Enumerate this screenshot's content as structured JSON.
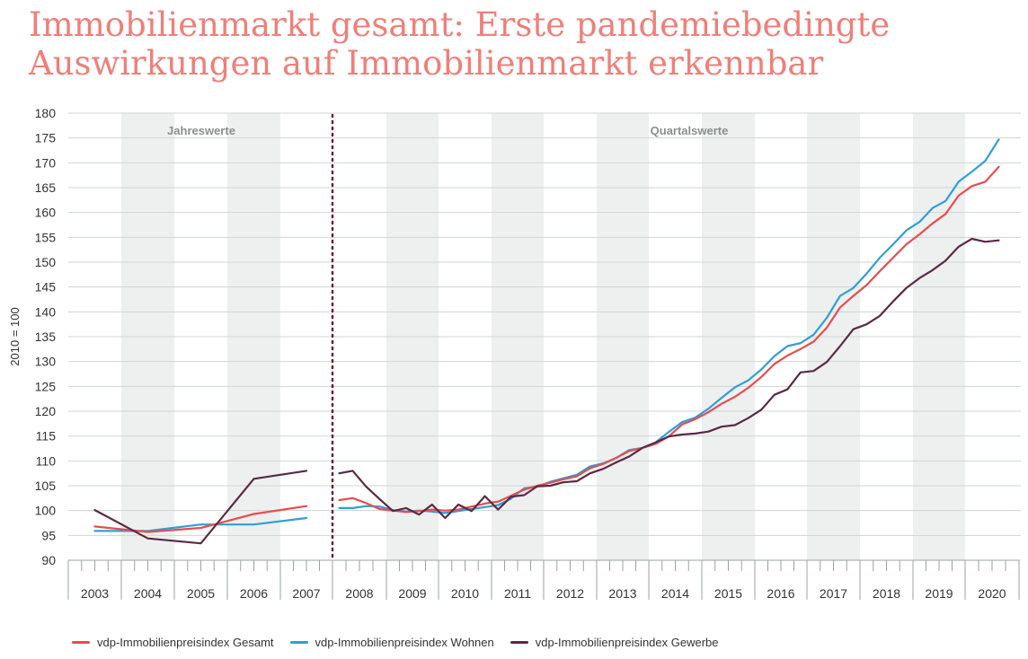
{
  "title_line1": "Immobilienmarkt gesamt: Erste pandemiebedingte",
  "title_line2": "Auswirkungen auf Immobilienmarkt erkennbar",
  "colors": {
    "title": "#ef7f79",
    "gesamt": "#e84c4f",
    "wohnen": "#2f9fd6",
    "gewerbe": "#5a2a45",
    "band": "#edf0ef",
    "grid": "#cfd6d3",
    "divider": "#6b1f33"
  },
  "chart_data": {
    "type": "line",
    "ylabel": "2010 = 100",
    "ylim": [
      90,
      180
    ],
    "yticks": [
      90,
      95,
      100,
      105,
      110,
      115,
      120,
      125,
      130,
      135,
      140,
      145,
      150,
      155,
      160,
      165,
      170,
      175,
      180
    ],
    "years": [
      "2003",
      "2004",
      "2005",
      "2006",
      "2007",
      "2008",
      "2009",
      "2010",
      "2011",
      "2012",
      "2013",
      "2014",
      "2015",
      "2016",
      "2017",
      "2018",
      "2019",
      "2020"
    ],
    "section_labels": {
      "annual": "Jahreswerte",
      "quarterly": "Quartalswerte"
    },
    "annual_x": [
      2003,
      2004,
      2005,
      2006,
      2007
    ],
    "quarterly_x": [
      "2008 Q1",
      "2008 Q2",
      "2008 Q3",
      "2008 Q4",
      "2009 Q1",
      "2009 Q2",
      "2009 Q3",
      "2009 Q4",
      "2010 Q1",
      "2010 Q2",
      "2010 Q3",
      "2010 Q4",
      "2011 Q1",
      "2011 Q2",
      "2011 Q3",
      "2011 Q4",
      "2012 Q1",
      "2012 Q2",
      "2012 Q3",
      "2012 Q4",
      "2013 Q1",
      "2013 Q2",
      "2013 Q3",
      "2013 Q4",
      "2014 Q1",
      "2014 Q2",
      "2014 Q3",
      "2014 Q4",
      "2015 Q1",
      "2015 Q2",
      "2015 Q3",
      "2015 Q4",
      "2016 Q1",
      "2016 Q2",
      "2016 Q3",
      "2016 Q4",
      "2017 Q1",
      "2017 Q2",
      "2017 Q3",
      "2017 Q4",
      "2018 Q1",
      "2018 Q2",
      "2018 Q3",
      "2018 Q4",
      "2019 Q1",
      "2019 Q2",
      "2019 Q3",
      "2019 Q4",
      "2020 Q1",
      "2020 Q2",
      "2020 Q3"
    ],
    "series": [
      {
        "name": "vdp-Immobilienpreisindex Gesamt",
        "annual": [
          96.8,
          95.7,
          96.5,
          99.3,
          100.9
        ],
        "quarterly": [
          102.1,
          102.5,
          101.5,
          100.3,
          100.0,
          99.7,
          99.9,
          100.2,
          100.0,
          100.2,
          100.8,
          101.4,
          101.8,
          103.0,
          104.2,
          105.0,
          105.6,
          106.3,
          106.9,
          108.5,
          109.4,
          110.6,
          112.0,
          112.6,
          113.4,
          114.9,
          117.3,
          118.4,
          119.8,
          121.5,
          122.9,
          124.7,
          126.9,
          129.5,
          131.2,
          132.5,
          134.0,
          136.8,
          140.9,
          143.2,
          145.4,
          148.2,
          150.9,
          153.6,
          155.6,
          157.8,
          159.7,
          163.4,
          165.3,
          166.2,
          169.2
        ]
      },
      {
        "name": "vdp-Immobilienpreisindex Wohnen",
        "annual": [
          95.9,
          95.9,
          97.2,
          97.2,
          98.5
        ],
        "quarterly": [
          100.5,
          100.5,
          100.9,
          100.8,
          100.1,
          99.8,
          100.0,
          99.8,
          99.5,
          99.9,
          100.3,
          100.7,
          101.1,
          102.4,
          104.5,
          104.8,
          105.8,
          106.5,
          107.2,
          108.9,
          109.5,
          110.6,
          112.2,
          112.6,
          113.7,
          115.8,
          117.8,
          118.7,
          120.5,
          122.7,
          124.8,
          126.2,
          128.4,
          131.1,
          133.1,
          133.7,
          135.4,
          138.8,
          143.2,
          144.8,
          147.7,
          150.9,
          153.6,
          156.4,
          158.1,
          160.9,
          162.3,
          166.2,
          168.2,
          170.4,
          174.7
        ]
      },
      {
        "name": "vdp-Immobilienpreisindex Gewerbe",
        "annual": [
          100.1,
          94.4,
          93.4,
          106.4,
          108.0
        ],
        "quarterly": [
          107.5,
          108.0,
          104.8,
          102.3,
          99.9,
          100.5,
          99.2,
          101.2,
          98.5,
          101.2,
          99.9,
          102.9,
          100.2,
          102.8,
          103.1,
          104.9,
          105.0,
          105.7,
          105.9,
          107.5,
          108.4,
          109.7,
          110.9,
          112.6,
          113.7,
          114.9,
          115.3,
          115.5,
          115.9,
          116.9,
          117.2,
          118.6,
          120.3,
          123.3,
          124.4,
          127.8,
          128.1,
          129.9,
          133.1,
          136.5,
          137.5,
          139.2,
          142.1,
          144.8,
          146.8,
          148.4,
          150.3,
          153.1,
          154.7,
          154.1,
          154.4
        ]
      }
    ]
  }
}
